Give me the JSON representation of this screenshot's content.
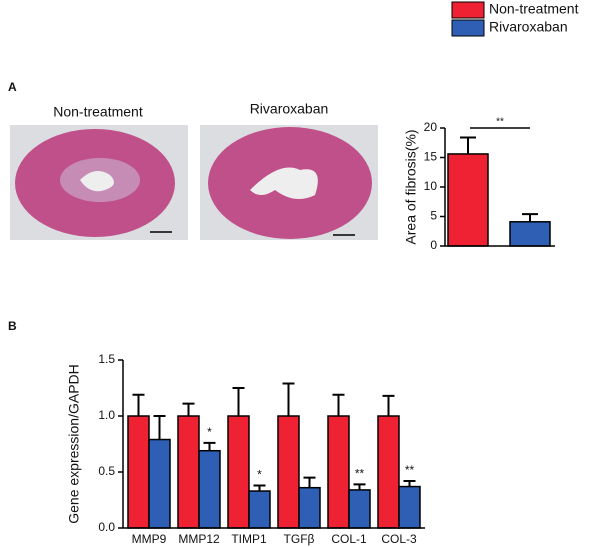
{
  "panels": [
    "A",
    "B"
  ],
  "images": [
    {
      "label": "Non-treatment"
    },
    {
      "label": "Rivaroxaban"
    }
  ],
  "chart_data": [
    {
      "type": "bar",
      "y_label": "Area of fibrosis(%)",
      "values": [
        15.6,
        4.1
      ],
      "errors": [
        2.8,
        1.3
      ],
      "colors": [
        "#ee2233",
        "#2e5fb5"
      ],
      "ylim": [
        0,
        20
      ],
      "yticks": [
        0,
        5,
        10,
        15,
        20
      ],
      "significance": "**"
    },
    {
      "type": "grouped-bar",
      "y_label": "Gene expression/GAPDH",
      "categories": [
        "MMP9",
        "MMP12",
        "TIMP1",
        "TGFβ",
        "COL-1",
        "COL-3"
      ],
      "series": [
        {
          "name": "Non-treatment",
          "color": "#ee2233",
          "values": [
            1.0,
            1.0,
            1.0,
            1.0,
            1.0,
            1.0
          ],
          "errors": [
            0.19,
            0.11,
            0.25,
            0.29,
            0.19,
            0.18
          ]
        },
        {
          "name": "Rivaroxaban",
          "color": "#2e5fb5",
          "values": [
            0.79,
            0.69,
            0.33,
            0.36,
            0.34,
            0.37
          ],
          "errors": [
            0.21,
            0.07,
            0.05,
            0.09,
            0.05,
            0.05
          ]
        }
      ],
      "significance": [
        null,
        "*",
        "*",
        null,
        "**",
        "**"
      ],
      "ylim": [
        0,
        1.5
      ],
      "yticks": [
        {
          "value": 0,
          "label": "0.0"
        },
        {
          "value": 0.5,
          "label": "0.5"
        },
        {
          "value": 1,
          "label": "1.0"
        },
        {
          "value": 1.5,
          "label": "1.5"
        }
      ]
    }
  ]
}
